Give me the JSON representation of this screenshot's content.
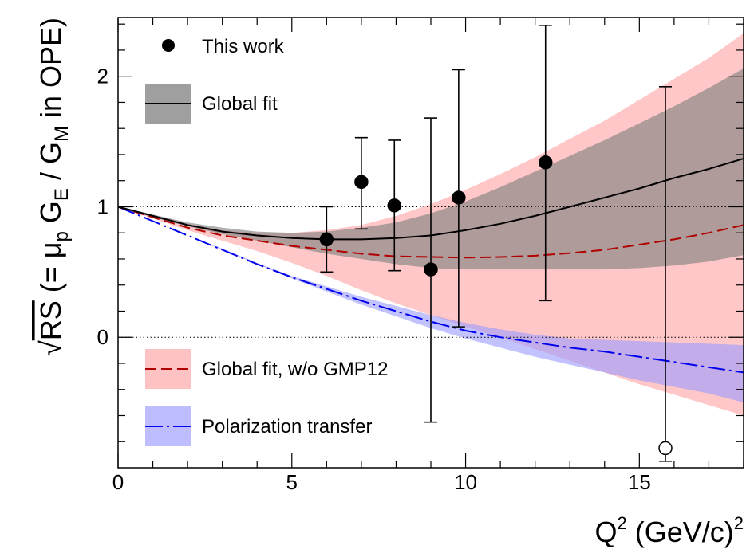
{
  "chart_data": {
    "type": "line",
    "xlim": [
      0,
      18
    ],
    "ylim": [
      -1,
      2.45
    ],
    "x_ticks": [
      0,
      5,
      10,
      15
    ],
    "y_ticks": [
      0,
      1,
      2
    ],
    "xlabel_main": "Q",
    "xlabel_exp": "2",
    "xlabel_unit": "(GeV/c)",
    "xlabel_unit_exp": "2",
    "ylabel_root": "√",
    "ylabel_rs": "RS",
    "ylabel_open": " (= μ",
    "ylabel_p": "p",
    "ylabel_g1": " G",
    "ylabel_e": "E",
    "ylabel_mid": " / G",
    "ylabel_m": "M",
    "ylabel_close": " in OPE)",
    "reference_lines": [
      1,
      0
    ],
    "legend": {
      "this_work": "This work",
      "global_fit": "Global fit",
      "global_fit_wo": "Global fit, w/o GMP12",
      "polarization": "Polarization transfer"
    },
    "colors": {
      "global_fit_band": "#7f7f7f",
      "global_fit_line": "#000000",
      "wo_band": "#ff9999",
      "wo_line": "#b00000",
      "pol_band": "#9999ff",
      "pol_line": "#0000ee"
    },
    "series": [
      {
        "name": "This work",
        "kind": "points",
        "points": [
          {
            "x": 6.0,
            "y": 0.75,
            "lo": 0.5,
            "hi": 1.0
          },
          {
            "x": 7.0,
            "y": 1.19,
            "lo": 0.83,
            "hi": 1.53
          },
          {
            "x": 7.95,
            "y": 1.01,
            "lo": 0.51,
            "hi": 1.51
          },
          {
            "x": 9.0,
            "y": 0.52,
            "lo": -0.65,
            "hi": 1.68
          },
          {
            "x": 9.8,
            "y": 1.07,
            "lo": 0.08,
            "hi": 2.05
          },
          {
            "x": 12.3,
            "y": 1.34,
            "lo": 0.28,
            "hi": 2.39
          }
        ],
        "open_points": [
          {
            "x": 15.75,
            "y": -0.85,
            "lo": -0.95,
            "hi": 1.92
          }
        ]
      },
      {
        "name": "Global fit",
        "kind": "band",
        "x": [
          0,
          1,
          2,
          3,
          4,
          5,
          6,
          7,
          8,
          9,
          10,
          11,
          12,
          13,
          14,
          15,
          16,
          17,
          18
        ],
        "center": [
          1.0,
          0.93,
          0.86,
          0.81,
          0.78,
          0.76,
          0.75,
          0.75,
          0.76,
          0.78,
          0.82,
          0.87,
          0.93,
          1.0,
          1.07,
          1.14,
          1.22,
          1.29,
          1.37
        ],
        "lower": [
          1.0,
          0.92,
          0.85,
          0.79,
          0.74,
          0.69,
          0.64,
          0.6,
          0.56,
          0.53,
          0.52,
          0.52,
          0.52,
          0.52,
          0.52,
          0.53,
          0.55,
          0.58,
          0.63
        ],
        "upper": [
          1.0,
          0.94,
          0.88,
          0.84,
          0.81,
          0.8,
          0.81,
          0.84,
          0.88,
          0.95,
          1.04,
          1.15,
          1.27,
          1.39,
          1.51,
          1.64,
          1.77,
          1.91,
          2.06
        ]
      },
      {
        "name": "Global fit, w/o GMP12",
        "kind": "band",
        "x": [
          0,
          1,
          2,
          3,
          4,
          5,
          6,
          7,
          8,
          9,
          10,
          11,
          12,
          13,
          14,
          15,
          16,
          17,
          18
        ],
        "center": [
          1.0,
          0.92,
          0.84,
          0.78,
          0.74,
          0.7,
          0.67,
          0.64,
          0.62,
          0.615,
          0.61,
          0.615,
          0.625,
          0.645,
          0.67,
          0.71,
          0.75,
          0.8,
          0.86
        ],
        "lower": [
          1.0,
          0.91,
          0.82,
          0.74,
          0.66,
          0.57,
          0.47,
          0.36,
          0.26,
          0.17,
          0.08,
          0.0,
          -0.09,
          -0.18,
          -0.27,
          -0.36,
          -0.44,
          -0.52,
          -0.6
        ],
        "upper": [
          1.0,
          0.93,
          0.87,
          0.82,
          0.8,
          0.8,
          0.82,
          0.86,
          0.93,
          1.02,
          1.13,
          1.25,
          1.38,
          1.52,
          1.66,
          1.82,
          1.98,
          2.14,
          2.33
        ]
      },
      {
        "name": "Polarization transfer",
        "kind": "band",
        "x": [
          0,
          1,
          2,
          3,
          4,
          5,
          6,
          7,
          8,
          9,
          10,
          11,
          12,
          13,
          14,
          15,
          16,
          17,
          18
        ],
        "center": [
          1.0,
          0.89,
          0.78,
          0.67,
          0.56,
          0.46,
          0.37,
          0.28,
          0.2,
          0.12,
          0.05,
          0.0,
          -0.04,
          -0.08,
          -0.11,
          -0.15,
          -0.19,
          -0.23,
          -0.27
        ],
        "lower": [
          1.0,
          0.89,
          0.78,
          0.67,
          0.56,
          0.45,
          0.35,
          0.25,
          0.16,
          0.07,
          -0.01,
          -0.08,
          -0.15,
          -0.21,
          -0.27,
          -0.33,
          -0.38,
          -0.43,
          -0.5
        ],
        "upper": [
          1.0,
          0.89,
          0.78,
          0.68,
          0.57,
          0.47,
          0.39,
          0.31,
          0.24,
          0.17,
          0.11,
          0.06,
          0.02,
          -0.01,
          -0.02,
          -0.03,
          -0.04,
          -0.05,
          -0.06
        ]
      }
    ]
  }
}
